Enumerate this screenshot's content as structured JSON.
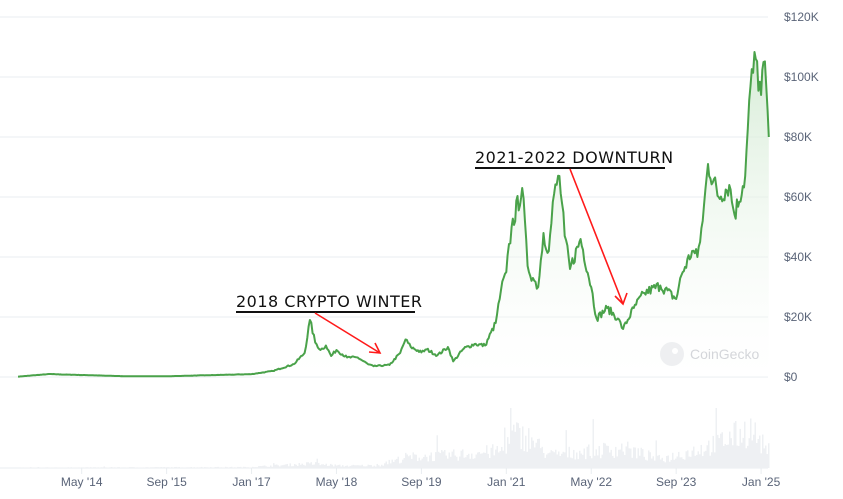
{
  "chart_data": {
    "type": "area",
    "title": "",
    "xlabel": "",
    "ylabel": "",
    "ylim": [
      0,
      120000
    ],
    "y_ticks": [
      "$0",
      "$20K",
      "$40K",
      "$60K",
      "$80K",
      "$100K",
      "$120K"
    ],
    "y_tick_values": [
      0,
      20000,
      40000,
      60000,
      80000,
      100000,
      120000
    ],
    "x_ticks": [
      "May '14",
      "Sep '15",
      "Jan '17",
      "May '18",
      "Sep '19",
      "Jan '21",
      "May '22",
      "Sep '23",
      "Jan '25"
    ],
    "x_tick_dates": [
      "2014-05",
      "2015-09",
      "2017-01",
      "2018-05",
      "2019-09",
      "2021-01",
      "2022-05",
      "2023-09",
      "2025-01"
    ],
    "x_range": [
      "2013-05",
      "2025-02"
    ],
    "grid": true,
    "y_axis_position": "right",
    "line_color": "#4aa24a",
    "fill_color": "#e4f2e4",
    "annotation_color": "#ff1a1a",
    "series": [
      {
        "values": [
          [
            "2013-05",
            120
          ],
          [
            "2013-11",
            1000
          ],
          [
            "2014-01",
            850
          ],
          [
            "2014-06",
            620
          ],
          [
            "2015-01",
            260
          ],
          [
            "2015-09",
            235
          ],
          [
            "2016-06",
            650
          ],
          [
            "2017-01",
            950
          ],
          [
            "2017-05",
            2000
          ],
          [
            "2017-09",
            4300
          ],
          [
            "2017-11",
            8000
          ],
          [
            "2017-12",
            19000
          ],
          [
            "2018-01",
            11500
          ],
          [
            "2018-02",
            9000
          ],
          [
            "2018-03",
            10500
          ],
          [
            "2018-04",
            7000
          ],
          [
            "2018-05",
            9000
          ],
          [
            "2018-07",
            6500
          ],
          [
            "2018-09",
            6500
          ],
          [
            "2018-11",
            4200
          ],
          [
            "2018-12",
            3600
          ],
          [
            "2019-03",
            4000
          ],
          [
            "2019-05",
            8000
          ],
          [
            "2019-06",
            12500
          ],
          [
            "2019-07",
            10000
          ],
          [
            "2019-09",
            8200
          ],
          [
            "2019-10",
            9200
          ],
          [
            "2019-12",
            7200
          ],
          [
            "2020-02",
            10000
          ],
          [
            "2020-03",
            5200
          ],
          [
            "2020-05",
            9500
          ],
          [
            "2020-07",
            11000
          ],
          [
            "2020-09",
            10500
          ],
          [
            "2020-11",
            18000
          ],
          [
            "2020-12",
            29000
          ],
          [
            "2021-01",
            35000
          ],
          [
            "2021-02",
            50000
          ],
          [
            "2021-04",
            63000
          ],
          [
            "2021-05",
            37000
          ],
          [
            "2021-06",
            33000
          ],
          [
            "2021-07",
            30000
          ],
          [
            "2021-08",
            48000
          ],
          [
            "2021-09",
            42000
          ],
          [
            "2021-10",
            61000
          ],
          [
            "2021-11",
            67000
          ],
          [
            "2021-12",
            47000
          ],
          [
            "2022-01",
            36000
          ],
          [
            "2022-03",
            46000
          ],
          [
            "2022-05",
            30000
          ],
          [
            "2022-06",
            19500
          ],
          [
            "2022-08",
            23000
          ],
          [
            "2022-10",
            19500
          ],
          [
            "2022-11",
            16000
          ],
          [
            "2023-01",
            23000
          ],
          [
            "2023-03",
            28000
          ],
          [
            "2023-06",
            30500
          ],
          [
            "2023-09",
            26000
          ],
          [
            "2023-10",
            34000
          ],
          [
            "2023-12",
            42000
          ],
          [
            "2024-01",
            40000
          ],
          [
            "2024-02",
            52000
          ],
          [
            "2024-03",
            71000
          ],
          [
            "2024-05",
            60000
          ],
          [
            "2024-07",
            64000
          ],
          [
            "2024-08",
            54000
          ],
          [
            "2024-10",
            67000
          ],
          [
            "2024-11",
            97000
          ],
          [
            "2024-12",
            106000
          ],
          [
            "2025-01",
            94000
          ],
          [
            "2025-01",
            105000
          ],
          [
            "2025-02",
            96000
          ],
          [
            "2025-02",
            80000
          ]
        ]
      }
    ],
    "volume_series": {
      "values": [
        [
          "2013-05",
          0.1
        ],
        [
          "2016-12",
          0.2
        ],
        [
          "2017-12",
          1.0
        ],
        [
          "2018-06",
          0.5
        ],
        [
          "2019-01",
          0.6
        ],
        [
          "2019-06",
          2.5
        ],
        [
          "2020-03",
          3.0
        ],
        [
          "2020-12",
          4.0
        ],
        [
          "2021-02",
          8.0
        ],
        [
          "2021-05",
          7.0
        ],
        [
          "2021-09",
          3.0
        ],
        [
          "2022-05",
          4.0
        ],
        [
          "2022-11",
          4.5
        ],
        [
          "2023-06",
          2.0
        ],
        [
          "2024-03",
          5.0
        ],
        [
          "2024-11",
          9.0
        ],
        [
          "2025-02",
          4.0
        ]
      ]
    },
    "annotations": [
      {
        "text": "2018 CRYPTO WINTER",
        "target_date": "2018-12",
        "target_value": 3600
      },
      {
        "text": "2021-2022 DOWNTURN",
        "target_date": "2022-11",
        "target_value": 16000
      }
    ]
  },
  "watermark": "CoinGecko"
}
